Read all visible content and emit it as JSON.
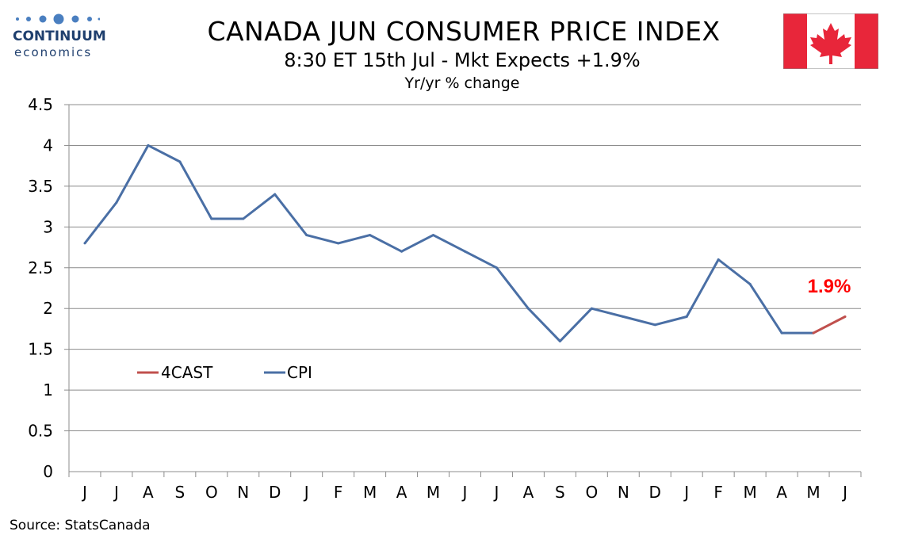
{
  "logo": {
    "name": "CONTINUUM",
    "sub": "economics"
  },
  "header": {
    "title": "CANADA JUN CONSUMER PRICE INDEX",
    "subtitle": "8:30 ET 15th Jul - Mkt Expects +1.9%",
    "units": "Yr/yr % change"
  },
  "flag": {
    "icon": "canada-flag-icon",
    "red": "#e8263a",
    "white": "#ffffff"
  },
  "source": "Source: StatsCanada",
  "chart_data": {
    "type": "line",
    "categories": [
      "J",
      "J",
      "A",
      "S",
      "O",
      "N",
      "D",
      "J",
      "F",
      "M",
      "A",
      "M",
      "J",
      "J",
      "A",
      "S",
      "O",
      "N",
      "D",
      "J",
      "F",
      "M",
      "A",
      "M",
      "J"
    ],
    "yticks": [
      "0",
      "0.5",
      "1",
      "1.5",
      "2",
      "2.5",
      "3",
      "3.5",
      "4",
      "4.5"
    ],
    "ylim": [
      0,
      4.5
    ],
    "grid": true,
    "legend_position": "lower-left",
    "series": [
      {
        "name": "CPI",
        "color": "#4a6fa5",
        "values": [
          2.8,
          3.3,
          4.0,
          3.8,
          3.1,
          3.1,
          3.4,
          2.9,
          2.8,
          2.9,
          2.7,
          2.9,
          2.7,
          2.5,
          2.0,
          1.6,
          2.0,
          1.9,
          1.8,
          1.9,
          2.6,
          2.3,
          1.7,
          1.7,
          null
        ]
      },
      {
        "name": "4CAST",
        "color": "#c0504d",
        "values": [
          null,
          null,
          null,
          null,
          null,
          null,
          null,
          null,
          null,
          null,
          null,
          null,
          null,
          null,
          null,
          null,
          null,
          null,
          null,
          null,
          null,
          null,
          null,
          1.7,
          1.9
        ]
      }
    ],
    "annotation": {
      "text": "1.9%",
      "color": "#ff0000"
    }
  }
}
